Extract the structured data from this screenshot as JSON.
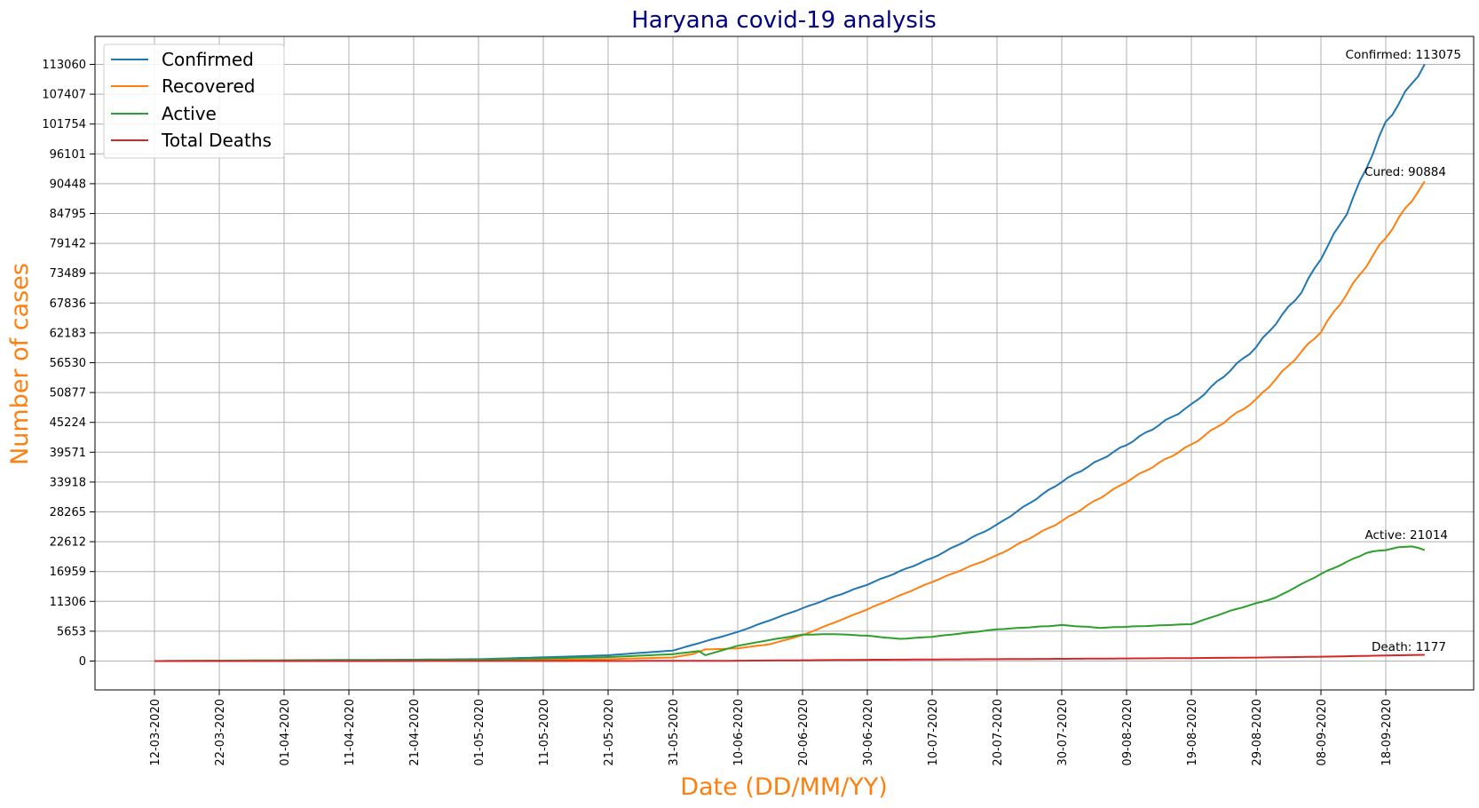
{
  "chart_data": {
    "type": "line",
    "title": "Haryana covid-19 analysis",
    "xlabel": "Date (DD/MM/YY)",
    "ylabel": "Number of cases",
    "x_tick_labels": [
      "12-03-2020",
      "22-03-2020",
      "01-04-2020",
      "11-04-2020",
      "21-04-2020",
      "01-05-2020",
      "11-05-2020",
      "21-05-2020",
      "31-05-2020",
      "10-06-2020",
      "20-06-2020",
      "30-06-2020",
      "10-07-2020",
      "20-07-2020",
      "30-07-2020",
      "09-08-2020",
      "19-08-2020",
      "29-08-2020",
      "08-09-2020",
      "18-09-2020"
    ],
    "y_tick_labels": [
      "0",
      "5653",
      "11306",
      "16959",
      "22612",
      "28265",
      "33918",
      "39571",
      "45224",
      "50877",
      "56530",
      "62183",
      "67836",
      "73489",
      "79142",
      "84795",
      "90448",
      "96101",
      "101754",
      "107407",
      "113060"
    ],
    "x_range": [
      "2020-03-12",
      "2020-09-24"
    ],
    "ylim": [
      -5500,
      118700
    ],
    "grid": true,
    "legend_position": "top-left",
    "series": [
      {
        "name": "Confirmed",
        "color": "#1f77b4",
        "points": [
          [
            "2020-03-12",
            0
          ],
          [
            "2020-04-01",
            150
          ],
          [
            "2020-04-21",
            260
          ],
          [
            "2020-05-01",
            360
          ],
          [
            "2020-05-11",
            700
          ],
          [
            "2020-05-21",
            1100
          ],
          [
            "2020-05-31",
            2000
          ],
          [
            "2020-06-10",
            5500
          ],
          [
            "2020-06-20",
            10000
          ],
          [
            "2020-06-30",
            14500
          ],
          [
            "2020-07-10",
            19500
          ],
          [
            "2020-07-20",
            25800
          ],
          [
            "2020-07-30",
            34000
          ],
          [
            "2020-08-09",
            41000
          ],
          [
            "2020-08-19",
            48500
          ],
          [
            "2020-08-29",
            59500
          ],
          [
            "2020-09-05",
            70000
          ],
          [
            "2020-09-12",
            85000
          ],
          [
            "2020-09-18",
            102000
          ],
          [
            "2020-09-24",
            113075
          ]
        ]
      },
      {
        "name": "Recovered",
        "color": "#ff7f0e",
        "points": [
          [
            "2020-03-12",
            0
          ],
          [
            "2020-04-21",
            80
          ],
          [
            "2020-05-11",
            200
          ],
          [
            "2020-05-21",
            350
          ],
          [
            "2020-05-31",
            700
          ],
          [
            "2020-06-03",
            1300
          ],
          [
            "2020-06-05",
            2200
          ],
          [
            "2020-06-10",
            2400
          ],
          [
            "2020-06-15",
            3200
          ],
          [
            "2020-06-20",
            4900
          ],
          [
            "2020-06-30",
            9800
          ],
          [
            "2020-07-10",
            15000
          ],
          [
            "2020-07-20",
            20000
          ],
          [
            "2020-07-30",
            26500
          ],
          [
            "2020-08-09",
            34000
          ],
          [
            "2020-08-19",
            41000
          ],
          [
            "2020-08-29",
            49500
          ],
          [
            "2020-09-08",
            62500
          ],
          [
            "2020-09-15",
            75000
          ],
          [
            "2020-09-24",
            90884
          ]
        ]
      },
      {
        "name": "Active",
        "color": "#2ca02c",
        "points": [
          [
            "2020-03-12",
            0
          ],
          [
            "2020-04-21",
            180
          ],
          [
            "2020-05-01",
            280
          ],
          [
            "2020-05-11",
            500
          ],
          [
            "2020-05-21",
            750
          ],
          [
            "2020-05-31",
            1300
          ],
          [
            "2020-06-04",
            1900
          ],
          [
            "2020-06-05",
            1100
          ],
          [
            "2020-06-10",
            2900
          ],
          [
            "2020-06-15",
            4000
          ],
          [
            "2020-06-20",
            5000
          ],
          [
            "2020-06-25",
            5100
          ],
          [
            "2020-06-30",
            4800
          ],
          [
            "2020-07-05",
            4200
          ],
          [
            "2020-07-10",
            4600
          ],
          [
            "2020-07-20",
            6000
          ],
          [
            "2020-07-30",
            6800
          ],
          [
            "2020-08-05",
            6300
          ],
          [
            "2020-08-09",
            6500
          ],
          [
            "2020-08-19",
            7000
          ],
          [
            "2020-08-25",
            9500
          ],
          [
            "2020-09-01",
            12000
          ],
          [
            "2020-09-08",
            16500
          ],
          [
            "2020-09-15",
            20500
          ],
          [
            "2020-09-20",
            21500
          ],
          [
            "2020-09-22",
            21800
          ],
          [
            "2020-09-24",
            21014
          ]
        ]
      },
      {
        "name": "Total Deaths",
        "color": "#d62728",
        "points": [
          [
            "2020-03-12",
            0
          ],
          [
            "2020-05-21",
            15
          ],
          [
            "2020-06-10",
            60
          ],
          [
            "2020-06-30",
            240
          ],
          [
            "2020-07-10",
            300
          ],
          [
            "2020-07-30",
            420
          ],
          [
            "2020-08-19",
            560
          ],
          [
            "2020-08-29",
            660
          ],
          [
            "2020-09-08",
            820
          ],
          [
            "2020-09-18",
            1050
          ],
          [
            "2020-09-24",
            1177
          ]
        ]
      }
    ],
    "annotations": [
      "Confirmed: 113075",
      "Cured: 90884",
      "Active: 21014",
      "Death: 1177"
    ]
  }
}
